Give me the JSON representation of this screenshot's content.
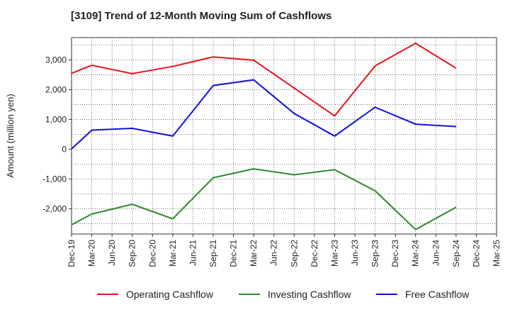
{
  "chart_data": {
    "type": "line",
    "title": "[3109]  Trend of 12-Month Moving Sum of Cashflows",
    "xlabel": "",
    "ylabel": "Amount (million yen)",
    "x_ticks": [
      "Dec-19",
      "Mar-20",
      "Jun-20",
      "Sep-20",
      "Dec-20",
      "Mar-21",
      "Jun-21",
      "Sep-21",
      "Dec-21",
      "Mar-22",
      "Jun-22",
      "Sep-22",
      "Dec-22",
      "Mar-23",
      "Jun-23",
      "Sep-23",
      "Dec-23",
      "Mar-24",
      "Jun-24",
      "Sep-24",
      "Dec-24",
      "Mar-25"
    ],
    "y_ticks": [
      3000,
      2000,
      1000,
      0,
      -1000,
      -2000
    ],
    "y_tick_labels": [
      "3,000",
      "2,000",
      "1,000",
      "0",
      "-1,000",
      "-2,000"
    ],
    "ylim": [
      -2850,
      3750
    ],
    "grid": true,
    "legend_position": "bottom",
    "series": [
      {
        "name": "Operating Cashflow",
        "color": "#e8141c",
        "x": [
          "Dec-19",
          "Mar-20",
          "Sep-20",
          "Mar-21",
          "Sep-21",
          "Mar-22",
          "Mar-23",
          "Sep-23",
          "Mar-24",
          "Sep-24"
        ],
        "values": [
          2550,
          2820,
          2540,
          2780,
          3100,
          2990,
          1120,
          2800,
          3560,
          2720
        ]
      },
      {
        "name": "Investing Cashflow",
        "color": "#2a8a2a",
        "x": [
          "Dec-19",
          "Mar-20",
          "Sep-20",
          "Mar-21",
          "Sep-21",
          "Mar-22",
          "Sep-22",
          "Mar-23",
          "Sep-23",
          "Mar-24",
          "Sep-24"
        ],
        "values": [
          -2540,
          -2180,
          -1850,
          -2340,
          -960,
          -660,
          -860,
          -690,
          -1400,
          -2700,
          -1950
        ]
      },
      {
        "name": "Free Cashflow",
        "color": "#1010e0",
        "x": [
          "Dec-19",
          "Mar-20",
          "Sep-20",
          "Mar-21",
          "Sep-21",
          "Mar-22",
          "Sep-22",
          "Mar-23",
          "Sep-23",
          "Mar-24",
          "Sep-24"
        ],
        "values": [
          10,
          640,
          700,
          440,
          2140,
          2330,
          1200,
          440,
          1410,
          840,
          760
        ]
      }
    ]
  }
}
